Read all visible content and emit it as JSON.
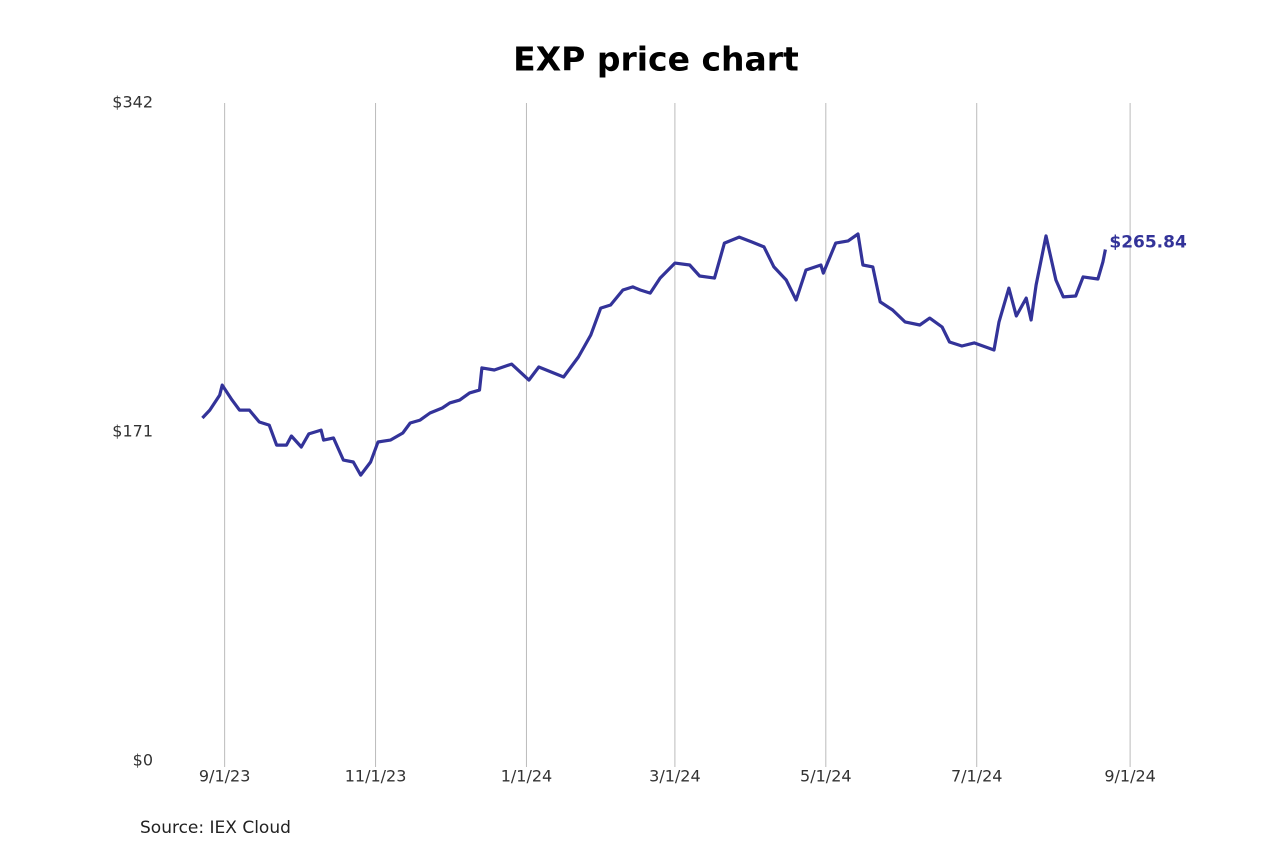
{
  "chart_data": {
    "type": "line",
    "title": "EXP price chart",
    "source": "Source: IEX Cloud",
    "x": [
      "2023-08-23",
      "2023-08-26",
      "2023-08-30",
      "2023-08-31",
      "2023-09-04",
      "2023-09-07",
      "2023-09-11",
      "2023-09-15",
      "2023-09-19",
      "2023-09-22",
      "2023-09-26",
      "2023-09-28",
      "2023-10-02",
      "2023-10-05",
      "2023-10-10",
      "2023-10-11",
      "2023-10-15",
      "2023-10-19",
      "2023-10-23",
      "2023-10-26",
      "2023-10-30",
      "2023-11-02",
      "2023-11-07",
      "2023-11-12",
      "2023-11-15",
      "2023-11-19",
      "2023-11-23",
      "2023-11-28",
      "2023-12-01",
      "2023-12-05",
      "2023-12-09",
      "2023-12-13",
      "2023-12-14",
      "2023-12-19",
      "2023-12-26",
      "2024-01-02",
      "2024-01-06",
      "2024-01-11",
      "2024-01-16",
      "2024-01-22",
      "2024-01-27",
      "2024-01-31",
      "2024-02-04",
      "2024-02-09",
      "2024-02-13",
      "2024-02-16",
      "2024-02-20",
      "2024-02-24",
      "2024-03-01",
      "2024-03-07",
      "2024-03-11",
      "2024-03-17",
      "2024-03-21",
      "2024-03-27",
      "2024-04-01",
      "2024-04-06",
      "2024-04-10",
      "2024-04-15",
      "2024-04-19",
      "2024-04-23",
      "2024-04-29",
      "2024-04-30",
      "2024-05-05",
      "2024-05-10",
      "2024-05-14",
      "2024-05-16",
      "2024-05-20",
      "2024-05-23",
      "2024-05-28",
      "2024-06-02",
      "2024-06-08",
      "2024-06-12",
      "2024-06-17",
      "2024-06-20",
      "2024-06-25",
      "2024-06-30",
      "2024-07-08",
      "2024-07-10",
      "2024-07-14",
      "2024-07-17",
      "2024-07-21",
      "2024-07-23",
      "2024-07-25",
      "2024-07-29",
      "2024-08-02",
      "2024-08-05",
      "2024-08-10",
      "2024-08-13",
      "2024-08-19",
      "2024-08-21",
      "2024-08-22"
    ],
    "series": [
      {
        "name": "EXP",
        "color": "#333399",
        "values": [
          178.3,
          182.4,
          190.2,
          195.4,
          187.6,
          182.4,
          182.4,
          176.2,
          174.6,
          164.2,
          164.2,
          168.9,
          163.2,
          170,
          172,
          166.8,
          167.9,
          156.4,
          155.4,
          148.6,
          155.4,
          165.8,
          166.8,
          170.5,
          175.7,
          177.2,
          180.9,
          183.5,
          186.1,
          187.6,
          191.3,
          192.8,
          204.3,
          203.2,
          206.3,
          198,
          204.8,
          202.2,
          199.6,
          210,
          221.4,
          235.4,
          237,
          244.8,
          246.4,
          244.8,
          243.2,
          251,
          258.8,
          257.8,
          252.1,
          251,
          269.2,
          272.3,
          269.8,
          267.2,
          256.8,
          250,
          239.6,
          255.2,
          257.8,
          253.6,
          269.2,
          270.3,
          273.9,
          257.8,
          256.8,
          238.6,
          234.4,
          228.2,
          226.6,
          230.2,
          225.6,
          217.8,
          215.7,
          217.3,
          213.6,
          228.2,
          245.8,
          231.3,
          240.6,
          229.2,
          247.4,
          272.9,
          250,
          241.2,
          241.7,
          251.6,
          250.5,
          259.4,
          265.84
        ],
        "value_labels": [
          null,
          null,
          null,
          null,
          null,
          null,
          null,
          null,
          null,
          null,
          null,
          null,
          null,
          null,
          null,
          null,
          null,
          null,
          null,
          null,
          null,
          null,
          null,
          null,
          null,
          null,
          null,
          null,
          null,
          null,
          null,
          null,
          null,
          null,
          null,
          null,
          null,
          null,
          null,
          null,
          null,
          null,
          null,
          null,
          null,
          null,
          null,
          null,
          null,
          null,
          null,
          null,
          null,
          null,
          null,
          null,
          null,
          null,
          null,
          null,
          null,
          null,
          null,
          null,
          null,
          null,
          null,
          null,
          null,
          null,
          null,
          null,
          null,
          null,
          null,
          null,
          null,
          null,
          null,
          null,
          null,
          null,
          null,
          null,
          null,
          null,
          null,
          null,
          null,
          null,
          "$265.84"
        ]
      }
    ],
    "xlim": [
      "2023-08-18",
      "2024-09-05"
    ],
    "xticks": [
      {
        "value": "2023-09-01",
        "label": "9/1/23"
      },
      {
        "value": "2023-11-01",
        "label": "11/1/23"
      },
      {
        "value": "2024-01-01",
        "label": "1/1/24"
      },
      {
        "value": "2024-03-01",
        "label": "3/1/24"
      },
      {
        "value": "2024-05-01",
        "label": "5/1/24"
      },
      {
        "value": "2024-07-01",
        "label": "7/1/24"
      },
      {
        "value": "2024-09-01",
        "label": "9/1/24"
      }
    ],
    "ylim": [
      0,
      342
    ],
    "yticks": [
      {
        "value": 0,
        "label": "$0"
      },
      {
        "value": 171,
        "label": "$171"
      },
      {
        "value": 342,
        "label": "$342"
      }
    ],
    "grid": "x"
  }
}
